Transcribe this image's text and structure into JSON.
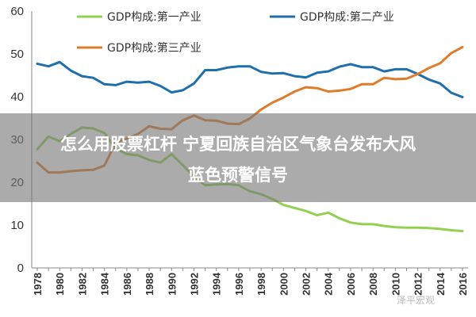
{
  "chart_data": {
    "type": "line",
    "x": [
      1978,
      1979,
      1980,
      1981,
      1982,
      1983,
      1984,
      1985,
      1986,
      1987,
      1988,
      1989,
      1990,
      1991,
      1992,
      1993,
      1994,
      1995,
      1996,
      1997,
      1998,
      1999,
      2000,
      2001,
      2002,
      2003,
      2004,
      2005,
      2006,
      2007,
      2008,
      2009,
      2010,
      2011,
      2012,
      2013,
      2014,
      2015,
      2016
    ],
    "xticks": [
      "1978",
      "1980",
      "1982",
      "1984",
      "1986",
      "1988",
      "1990",
      "1992",
      "1994",
      "1996",
      "1998",
      "2000",
      "2002",
      "2004",
      "2006",
      "2008",
      "2010",
      "2012",
      "2014",
      "2016"
    ],
    "ylim": [
      0,
      60
    ],
    "yticks": [
      "0",
      "10",
      "20",
      "30",
      "40",
      "50",
      "60"
    ],
    "grid": false,
    "series": [
      {
        "name": "GDP构成:第一产业",
        "color": "#92d050",
        "values": [
          27.7,
          30.7,
          29.6,
          31.3,
          32.8,
          32.6,
          31.5,
          27.9,
          26.6,
          26.3,
          25.2,
          24.6,
          26.6,
          24.0,
          21.3,
          19.3,
          19.5,
          19.6,
          19.3,
          17.9,
          17.2,
          16.1,
          14.7,
          14.0,
          13.3,
          12.3,
          12.9,
          11.6,
          10.6,
          10.2,
          10.2,
          9.8,
          9.5,
          9.4,
          9.4,
          9.3,
          9.1,
          8.8,
          8.6
        ]
      },
      {
        "name": "GDP构成:第二产业",
        "color": "#1f6fad",
        "values": [
          47.7,
          47.1,
          48.1,
          46.1,
          44.8,
          44.4,
          42.9,
          42.7,
          43.5,
          43.3,
          43.5,
          42.5,
          41.0,
          41.5,
          43.1,
          46.2,
          46.2,
          46.8,
          47.1,
          47.1,
          45.8,
          45.4,
          45.5,
          44.8,
          44.5,
          45.6,
          45.9,
          47.0,
          47.6,
          46.9,
          46.9,
          45.9,
          46.4,
          46.4,
          45.3,
          44.0,
          43.1,
          40.9,
          39.9
        ]
      },
      {
        "name": "GDP构成:第三产业",
        "color": "#e07b2a",
        "values": [
          24.6,
          22.3,
          22.3,
          22.6,
          22.8,
          22.9,
          23.9,
          29.2,
          30.2,
          31.3,
          33.1,
          32.5,
          32.4,
          34.5,
          35.6,
          34.5,
          34.4,
          33.7,
          33.6,
          34.9,
          37.0,
          38.6,
          39.8,
          41.2,
          42.2,
          42.0,
          41.2,
          41.4,
          41.8,
          42.9,
          42.9,
          44.4,
          44.1,
          44.2,
          45.3,
          46.7,
          47.8,
          50.2,
          51.6
        ]
      }
    ]
  },
  "banner": {
    "line1": "怎么用股票杠杆 宁夏回族自治区气象台发布大风",
    "line2": "蓝色预警信号"
  },
  "watermark": "泽平宏观"
}
